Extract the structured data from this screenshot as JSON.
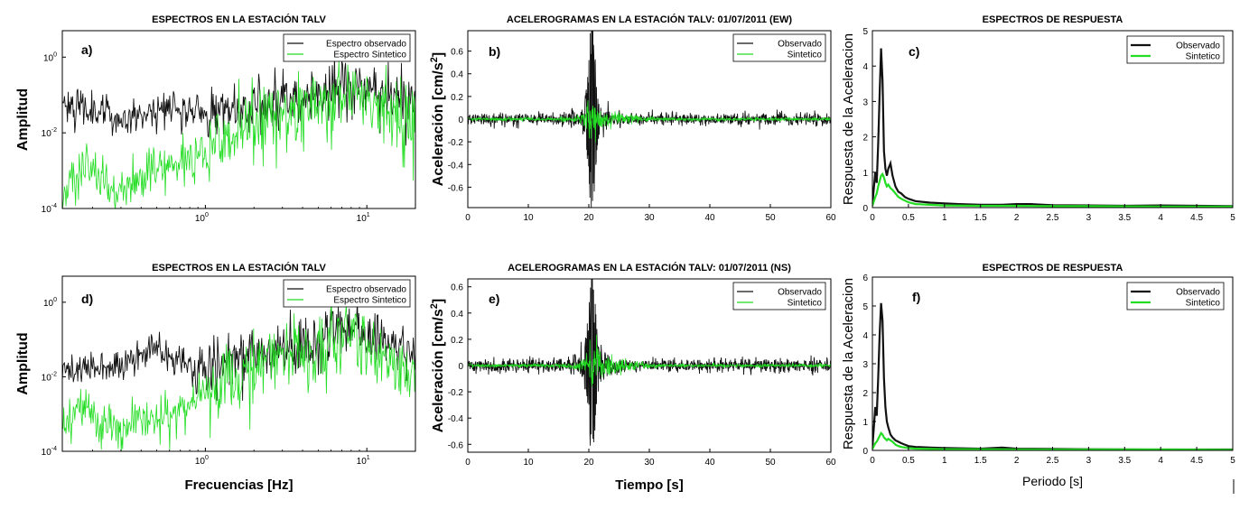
{
  "colors": {
    "observed": "#111111",
    "synthetic": "#22dd22"
  },
  "chart_data": [
    {
      "id": "a",
      "type": "line",
      "label": "a)",
      "title": "ESPECTROS EN LA ESTACIÓN TALV",
      "xlabel": "",
      "ylabel": "Amplitud",
      "xscale": "log",
      "yscale": "log",
      "xlim": [
        0.13,
        20
      ],
      "ylim": [
        0.0001,
        5
      ],
      "xticks": [
        {
          "v": 1,
          "m": "1",
          "e": "0"
        },
        {
          "v": 10,
          "m": "1",
          "e": "1"
        }
      ],
      "yticks": [
        {
          "v": 0.0001,
          "m": "1",
          "e": "-4"
        },
        {
          "v": 0.01,
          "m": "1",
          "e": "-2"
        },
        {
          "v": 1,
          "m": "1",
          "e": "0"
        }
      ],
      "legend": [
        "Espectro observado",
        "Espectro Sintetico"
      ],
      "legend_position": "top-right",
      "series": [
        {
          "name": "Espectro observado",
          "kind": "spec_obs",
          "seed": 11,
          "knots": [
            [
              0.13,
              0.08
            ],
            [
              0.3,
              0.025
            ],
            [
              0.6,
              0.06
            ],
            [
              1,
              0.03
            ],
            [
              2,
              0.06
            ],
            [
              5,
              0.1
            ],
            [
              9,
              0.3
            ],
            [
              14,
              0.12
            ],
            [
              20,
              0.05
            ]
          ]
        },
        {
          "name": "Espectro Sintetico",
          "kind": "spec_syn",
          "seed": 12,
          "knots": [
            [
              0.13,
              0.0003
            ],
            [
              0.18,
              0.002
            ],
            [
              0.22,
              0.0005
            ],
            [
              0.28,
              0.0003
            ],
            [
              0.5,
              0.001
            ],
            [
              1,
              0.003
            ],
            [
              2,
              0.02
            ],
            [
              5,
              0.06
            ],
            [
              8,
              0.12
            ],
            [
              12,
              0.04
            ],
            [
              20,
              0.015
            ]
          ]
        }
      ]
    },
    {
      "id": "b",
      "type": "line",
      "label": "b)",
      "title": "ACELEROGRAMAS EN LA ESTACIÓN TALV: 01/07/2011 (EW)",
      "xlabel": "",
      "ylabel": "Aceleración [cm/s²]",
      "xlim": [
        0,
        60
      ],
      "ylim": [
        -0.78,
        0.78
      ],
      "xticks": [
        0,
        10,
        20,
        30,
        40,
        50,
        60
      ],
      "yticks": [
        -0.6,
        -0.4,
        -0.2,
        0,
        0.2,
        0.4,
        0.6
      ],
      "legend": [
        "Observado",
        "Sintetico"
      ],
      "legend_position": "top-right",
      "series": [
        {
          "name": "Observado",
          "kind": "acc_obs",
          "seed": 21,
          "peak": 0.78,
          "noise": 0.06
        },
        {
          "name": "Sintetico",
          "kind": "acc_syn",
          "seed": 22,
          "peak": 0.2,
          "noise": 0.015
        }
      ]
    },
    {
      "id": "c",
      "type": "line",
      "label": "c)",
      "title": "ESPECTROS DE RESPUESTA",
      "xlabel": "",
      "ylabel": "Respuesta de la Aceleracion",
      "xlim": [
        0,
        5
      ],
      "ylim": [
        0,
        5
      ],
      "xticks": [
        0,
        0.5,
        1,
        1.5,
        2,
        2.5,
        3,
        3.5,
        4,
        4.5,
        5
      ],
      "yticks": [
        0,
        1,
        2,
        3,
        4,
        5
      ],
      "legend": [
        "Observado",
        "Sintetico"
      ],
      "legend_position": "top-right",
      "series": [
        {
          "name": "Observado",
          "kind": "resp",
          "x": [
            0,
            0.04,
            0.06,
            0.08,
            0.1,
            0.12,
            0.14,
            0.16,
            0.18,
            0.2,
            0.22,
            0.25,
            0.28,
            0.32,
            0.36,
            0.4,
            0.45,
            0.5,
            0.6,
            0.8,
            1.0,
            1.2,
            1.5,
            1.8,
            2.0,
            2.2,
            2.5,
            3.0,
            3.5,
            4.0,
            4.5,
            5.0
          ],
          "y": [
            0.1,
            1.0,
            0.7,
            1.8,
            3.2,
            4.5,
            3.6,
            1.6,
            1.1,
            0.9,
            1.1,
            1.25,
            0.9,
            0.6,
            0.45,
            0.4,
            0.3,
            0.25,
            0.18,
            0.14,
            0.12,
            0.1,
            0.08,
            0.08,
            0.1,
            0.1,
            0.07,
            0.06,
            0.05,
            0.06,
            0.05,
            0.04
          ]
        },
        {
          "name": "Sintetico",
          "kind": "resp",
          "x": [
            0,
            0.04,
            0.06,
            0.08,
            0.1,
            0.12,
            0.14,
            0.16,
            0.18,
            0.2,
            0.22,
            0.25,
            0.28,
            0.32,
            0.36,
            0.4,
            0.45,
            0.5,
            0.6,
            0.8,
            1.0,
            1.5,
            2.0,
            2.5,
            3.0,
            4.0,
            5.0
          ],
          "y": [
            0.05,
            0.3,
            0.4,
            0.6,
            0.75,
            0.9,
            0.95,
            0.85,
            0.7,
            0.6,
            0.65,
            0.55,
            0.5,
            0.4,
            0.3,
            0.25,
            0.2,
            0.15,
            0.1,
            0.08,
            0.06,
            0.05,
            0.05,
            0.04,
            0.04,
            0.03,
            0.03
          ]
        }
      ]
    },
    {
      "id": "d",
      "type": "line",
      "label": "d)",
      "title": "ESPECTROS EN LA ESTACIÓN TALV",
      "xlabel": "Frecuencias [Hz]",
      "ylabel": "Amplitud",
      "xscale": "log",
      "yscale": "log",
      "xlim": [
        0.13,
        20
      ],
      "ylim": [
        0.0001,
        5
      ],
      "xticks": [
        {
          "v": 1,
          "m": "1",
          "e": "0"
        },
        {
          "v": 10,
          "m": "1",
          "e": "1"
        }
      ],
      "yticks": [
        {
          "v": 0.0001,
          "m": "1",
          "e": "-4"
        },
        {
          "v": 0.01,
          "m": "1",
          "e": "-2"
        },
        {
          "v": 1,
          "m": "1",
          "e": "0"
        }
      ],
      "legend": [
        "Espectro observado",
        "Espectro Sintetico"
      ],
      "legend_position": "top-right",
      "series": [
        {
          "name": "Espectro observado",
          "kind": "spec_obs",
          "seed": 31,
          "knots": [
            [
              0.13,
              0.015
            ],
            [
              0.3,
              0.02
            ],
            [
              0.45,
              0.06
            ],
            [
              0.6,
              0.03
            ],
            [
              1,
              0.02
            ],
            [
              2,
              0.04
            ],
            [
              5,
              0.08
            ],
            [
              8,
              0.25
            ],
            [
              12,
              0.1
            ],
            [
              20,
              0.04
            ]
          ]
        },
        {
          "name": "Espectro Sintetico",
          "kind": "spec_syn",
          "seed": 32,
          "knots": [
            [
              0.13,
              0.0004
            ],
            [
              0.18,
              0.003
            ],
            [
              0.22,
              0.0007
            ],
            [
              0.3,
              0.0005
            ],
            [
              0.6,
              0.001
            ],
            [
              1,
              0.004
            ],
            [
              2,
              0.02
            ],
            [
              5,
              0.05
            ],
            [
              8,
              0.1
            ],
            [
              12,
              0.03
            ],
            [
              20,
              0.01
            ]
          ]
        }
      ]
    },
    {
      "id": "e",
      "type": "line",
      "label": "e)",
      "title": "ACELEROGRAMAS EN LA ESTACIÓN TALV: 01/07/2011 (NS)",
      "xlabel": "Tiempo [s]",
      "ylabel": "Aceleración [cm/s²]",
      "xlim": [
        0,
        60
      ],
      "ylim": [
        -0.66,
        0.66
      ],
      "xticks": [
        0,
        10,
        20,
        30,
        40,
        50,
        60
      ],
      "yticks": [
        -0.6,
        -0.4,
        -0.2,
        0,
        0.2,
        0.4,
        0.6
      ],
      "legend": [
        "Observado",
        "Sintetico"
      ],
      "legend_position": "top-right",
      "series": [
        {
          "name": "Observado",
          "kind": "acc_obs",
          "seed": 41,
          "peak": 0.66,
          "noise": 0.06
        },
        {
          "name": "Sintetico",
          "kind": "acc_syn",
          "seed": 42,
          "peak": 0.2,
          "noise": 0.015
        }
      ]
    },
    {
      "id": "f",
      "type": "line",
      "label": "f)",
      "title": "ESPECTROS DE RESPUESTA",
      "xlabel": "Periodo [s]",
      "ylabel": "Respuesta de la Aceleracion",
      "xlim": [
        0,
        5
      ],
      "ylim": [
        0,
        6
      ],
      "xticks": [
        0,
        0.5,
        1,
        1.5,
        2,
        2.5,
        3,
        3.5,
        4,
        4.5,
        5
      ],
      "yticks": [
        0,
        1,
        2,
        3,
        4,
        5,
        6
      ],
      "legend": [
        "Observado",
        "Sintetico"
      ],
      "legend_position": "top-right",
      "series": [
        {
          "name": "Observado",
          "kind": "resp",
          "x": [
            0,
            0.04,
            0.06,
            0.08,
            0.1,
            0.12,
            0.14,
            0.16,
            0.18,
            0.2,
            0.22,
            0.25,
            0.28,
            0.32,
            0.36,
            0.4,
            0.45,
            0.5,
            0.6,
            0.8,
            1.0,
            1.5,
            1.8,
            2.0,
            2.5,
            3.0,
            4.0,
            5.0
          ],
          "y": [
            0.1,
            1.5,
            1.2,
            2.5,
            4.0,
            5.1,
            4.5,
            2.5,
            1.5,
            1.0,
            0.8,
            0.55,
            0.45,
            0.35,
            0.3,
            0.25,
            0.2,
            0.15,
            0.12,
            0.1,
            0.08,
            0.06,
            0.1,
            0.06,
            0.05,
            0.04,
            0.03,
            0.03
          ]
        },
        {
          "name": "Sintetico",
          "kind": "resp",
          "x": [
            0,
            0.04,
            0.06,
            0.08,
            0.1,
            0.12,
            0.14,
            0.16,
            0.18,
            0.2,
            0.22,
            0.25,
            0.28,
            0.32,
            0.36,
            0.4,
            0.5,
            0.6,
            0.8,
            1.0,
            1.5,
            2.0,
            3.0,
            4.0,
            5.0
          ],
          "y": [
            0.05,
            0.25,
            0.3,
            0.4,
            0.5,
            0.6,
            0.55,
            0.45,
            0.4,
            0.35,
            0.4,
            0.35,
            0.3,
            0.2,
            0.15,
            0.12,
            0.08,
            0.06,
            0.05,
            0.04,
            0.04,
            0.03,
            0.03,
            0.03,
            0.02
          ]
        }
      ]
    }
  ]
}
